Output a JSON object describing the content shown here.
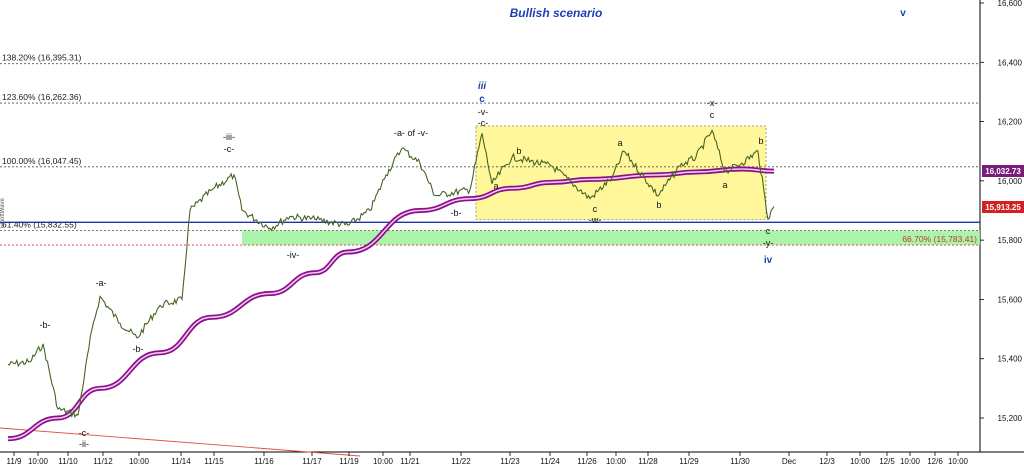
{
  "chart_data": {
    "type": "line",
    "title": "Bullish scenario",
    "ylim": [
      15100,
      16600
    ],
    "y_ticks": [
      "15,200",
      "15,400",
      "15,600",
      "15,800",
      "16,000",
      "16,200",
      "16,400",
      "16,600"
    ],
    "x_ticks": [
      "11/9",
      "10:00",
      "11/10",
      "11/12",
      "10:00",
      "11/14",
      "11/15",
      "11/16",
      "11/17",
      "11/19",
      "10:00",
      "11/21",
      "11/22",
      "11/23",
      "11/24",
      "11/26",
      "10:00",
      "11/28",
      "11/29",
      "11/30",
      "Dec",
      "12/3",
      "10:00",
      "12/5",
      "10:00",
      "12/6",
      "10:00"
    ],
    "fib_levels": [
      {
        "label": "138.20% (16,395.31)",
        "value": 16395.31
      },
      {
        "label": "123.60% (16,262.36)",
        "value": 16262.36
      },
      {
        "label": "100.00% (16,047.45)",
        "value": 16047.45
      },
      {
        "label": "61.40% (15,832.55)",
        "value": 15832.55
      }
    ],
    "support_line": 15860,
    "support_zone": {
      "top": 15832.55,
      "bottom": 15783.41,
      "label": "66.70% (15,783.41)"
    },
    "consolidation_box": {
      "top": 16185,
      "bottom": 15870,
      "x_start": "11/22",
      "x_end": "11/30"
    },
    "last_price": {
      "label": "15,913.25",
      "value": 15913.25
    },
    "moving_average_value": {
      "label": "16,032.73",
      "value": 16032.73
    },
    "price_series": {
      "name": "",
      "points": [
        {
          "x": "11/9",
          "y": 15380
        },
        {
          "x": "11/9 10:00",
          "y": 15390
        },
        {
          "x": "11/9 pm",
          "y": 15450
        },
        {
          "x": "11/10",
          "y": 15230
        },
        {
          "x": "11/10 am",
          "y": 15210
        },
        {
          "x": "11/10 pm",
          "y": 15500
        },
        {
          "x": "11/12",
          "y": 15610
        },
        {
          "x": "11/12 10:00",
          "y": 15520
        },
        {
          "x": "11/12 pm",
          "y": 15470
        },
        {
          "x": "11/14",
          "y": 15580
        },
        {
          "x": "11/14 pm",
          "y": 15600
        },
        {
          "x": "11/14 late",
          "y": 15900
        },
        {
          "x": "11/15",
          "y": 15970
        },
        {
          "x": "11/15 mid",
          "y": 16020
        },
        {
          "x": "11/15 pm",
          "y": 15900
        },
        {
          "x": "11/16",
          "y": 15840
        },
        {
          "x": "11/16 pm",
          "y": 15880
        },
        {
          "x": "11/17",
          "y": 15870
        },
        {
          "x": "11/19",
          "y": 15850
        },
        {
          "x": "11/19 pm",
          "y": 15900
        },
        {
          "x": "10:00 (11/20)",
          "y": 16020
        },
        {
          "x": "11/20 pm",
          "y": 16110
        },
        {
          "x": "11/21",
          "y": 16060
        },
        {
          "x": "11/21 pm",
          "y": 15950
        },
        {
          "x": "11/22",
          "y": 15970
        },
        {
          "x": "11/22 hi",
          "y": 16160
        },
        {
          "x": "11/22 lo",
          "y": 15990
        },
        {
          "x": "11/23",
          "y": 16080
        },
        {
          "x": "11/24",
          "y": 16050
        },
        {
          "x": "11/26",
          "y": 15940
        },
        {
          "x": "11/26 10:00",
          "y": 16010
        },
        {
          "x": "11/27",
          "y": 16100
        },
        {
          "x": "11/28",
          "y": 15950
        },
        {
          "x": "11/28 pm",
          "y": 16050
        },
        {
          "x": "11/29",
          "y": 16080
        },
        {
          "x": "11/29 hi",
          "y": 16170
        },
        {
          "x": "11/29 pm",
          "y": 16030
        },
        {
          "x": "11/30",
          "y": 16060
        },
        {
          "x": "11/30 hi",
          "y": 16100
        },
        {
          "x": "11/30 lo",
          "y": 15870
        },
        {
          "x": "11/30 last",
          "y": 15913.25
        }
      ]
    },
    "moving_average": {
      "name": "",
      "points": [
        {
          "x": "11/9",
          "y": 15130
        },
        {
          "x": "11/10",
          "y": 15200
        },
        {
          "x": "11/12",
          "y": 15300
        },
        {
          "x": "11/14",
          "y": 15420
        },
        {
          "x": "11/15",
          "y": 15540
        },
        {
          "x": "11/16",
          "y": 15620
        },
        {
          "x": "11/17",
          "y": 15690
        },
        {
          "x": "11/19",
          "y": 15760
        },
        {
          "x": "11/21",
          "y": 15900
        },
        {
          "x": "11/22",
          "y": 15940
        },
        {
          "x": "11/23",
          "y": 15975
        },
        {
          "x": "11/24",
          "y": 15995
        },
        {
          "x": "11/26",
          "y": 16005
        },
        {
          "x": "11/28",
          "y": 16020
        },
        {
          "x": "11/29",
          "y": 16030
        },
        {
          "x": "11/30",
          "y": 16040
        },
        {
          "x": "11/30 last",
          "y": 16032.73
        }
      ]
    },
    "wave_labels": [
      "-b-",
      "-a-",
      "-b-",
      "-c-",
      "-ii-",
      "-iii-",
      "-c-",
      "-iv-",
      "-a- of -v-",
      "-b-",
      "-v-",
      "-c-",
      "iii",
      "c",
      "b",
      "a",
      "a",
      "c",
      "-w-",
      "b",
      "-x-",
      "c",
      "a",
      "b",
      "c",
      "-y-",
      "iv",
      "v"
    ]
  }
}
